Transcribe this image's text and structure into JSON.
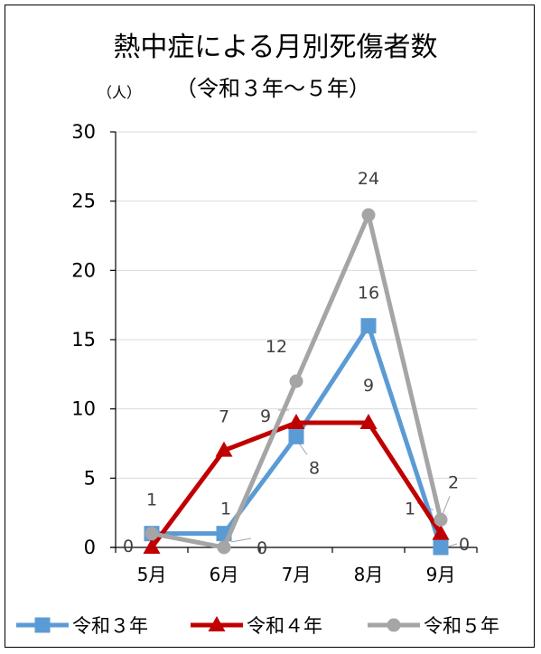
{
  "chart_data": {
    "type": "line",
    "title": "熱中症による月別死傷者数",
    "subtitle": "（令和３年～５年）",
    "unit_label": "（人）",
    "categories": [
      "5月",
      "6月",
      "7月",
      "8月",
      "9月"
    ],
    "ylim": [
      0,
      30
    ],
    "yticks": [
      0,
      5,
      10,
      15,
      20,
      25,
      30
    ],
    "grid": true,
    "legend_position": "bottom",
    "series": [
      {
        "name": "令和３年",
        "values": [
          1,
          1,
          8,
          16,
          0
        ],
        "color": "#5B9BD5",
        "marker": "square"
      },
      {
        "name": "令和４年",
        "values": [
          0,
          7,
          9,
          9,
          1
        ],
        "color": "#C00000",
        "marker": "triangle"
      },
      {
        "name": "令和５年",
        "values": [
          1,
          0,
          12,
          24,
          2
        ],
        "color": "#A5A5A5",
        "marker": "circle"
      }
    ],
    "data_labels": [
      {
        "text": "1",
        "series": 2,
        "index": 0
      },
      {
        "text": "0",
        "series": 1,
        "index": 0
      },
      {
        "text": "7",
        "series": 1,
        "index": 1
      },
      {
        "text": "1",
        "series": 0,
        "index": 1
      },
      {
        "text": "0",
        "series": 2,
        "index": 1
      },
      {
        "text": "12",
        "series": 2,
        "index": 2
      },
      {
        "text": "9",
        "series": 1,
        "index": 2
      },
      {
        "text": "8",
        "series": 0,
        "index": 2
      },
      {
        "text": "24",
        "series": 2,
        "index": 3
      },
      {
        "text": "16",
        "series": 0,
        "index": 3
      },
      {
        "text": "9",
        "series": 1,
        "index": 3
      },
      {
        "text": "2",
        "series": 2,
        "index": 4
      },
      {
        "text": "1",
        "series": 1,
        "index": 4
      },
      {
        "text": "0",
        "series": 0,
        "index": 4
      }
    ]
  }
}
